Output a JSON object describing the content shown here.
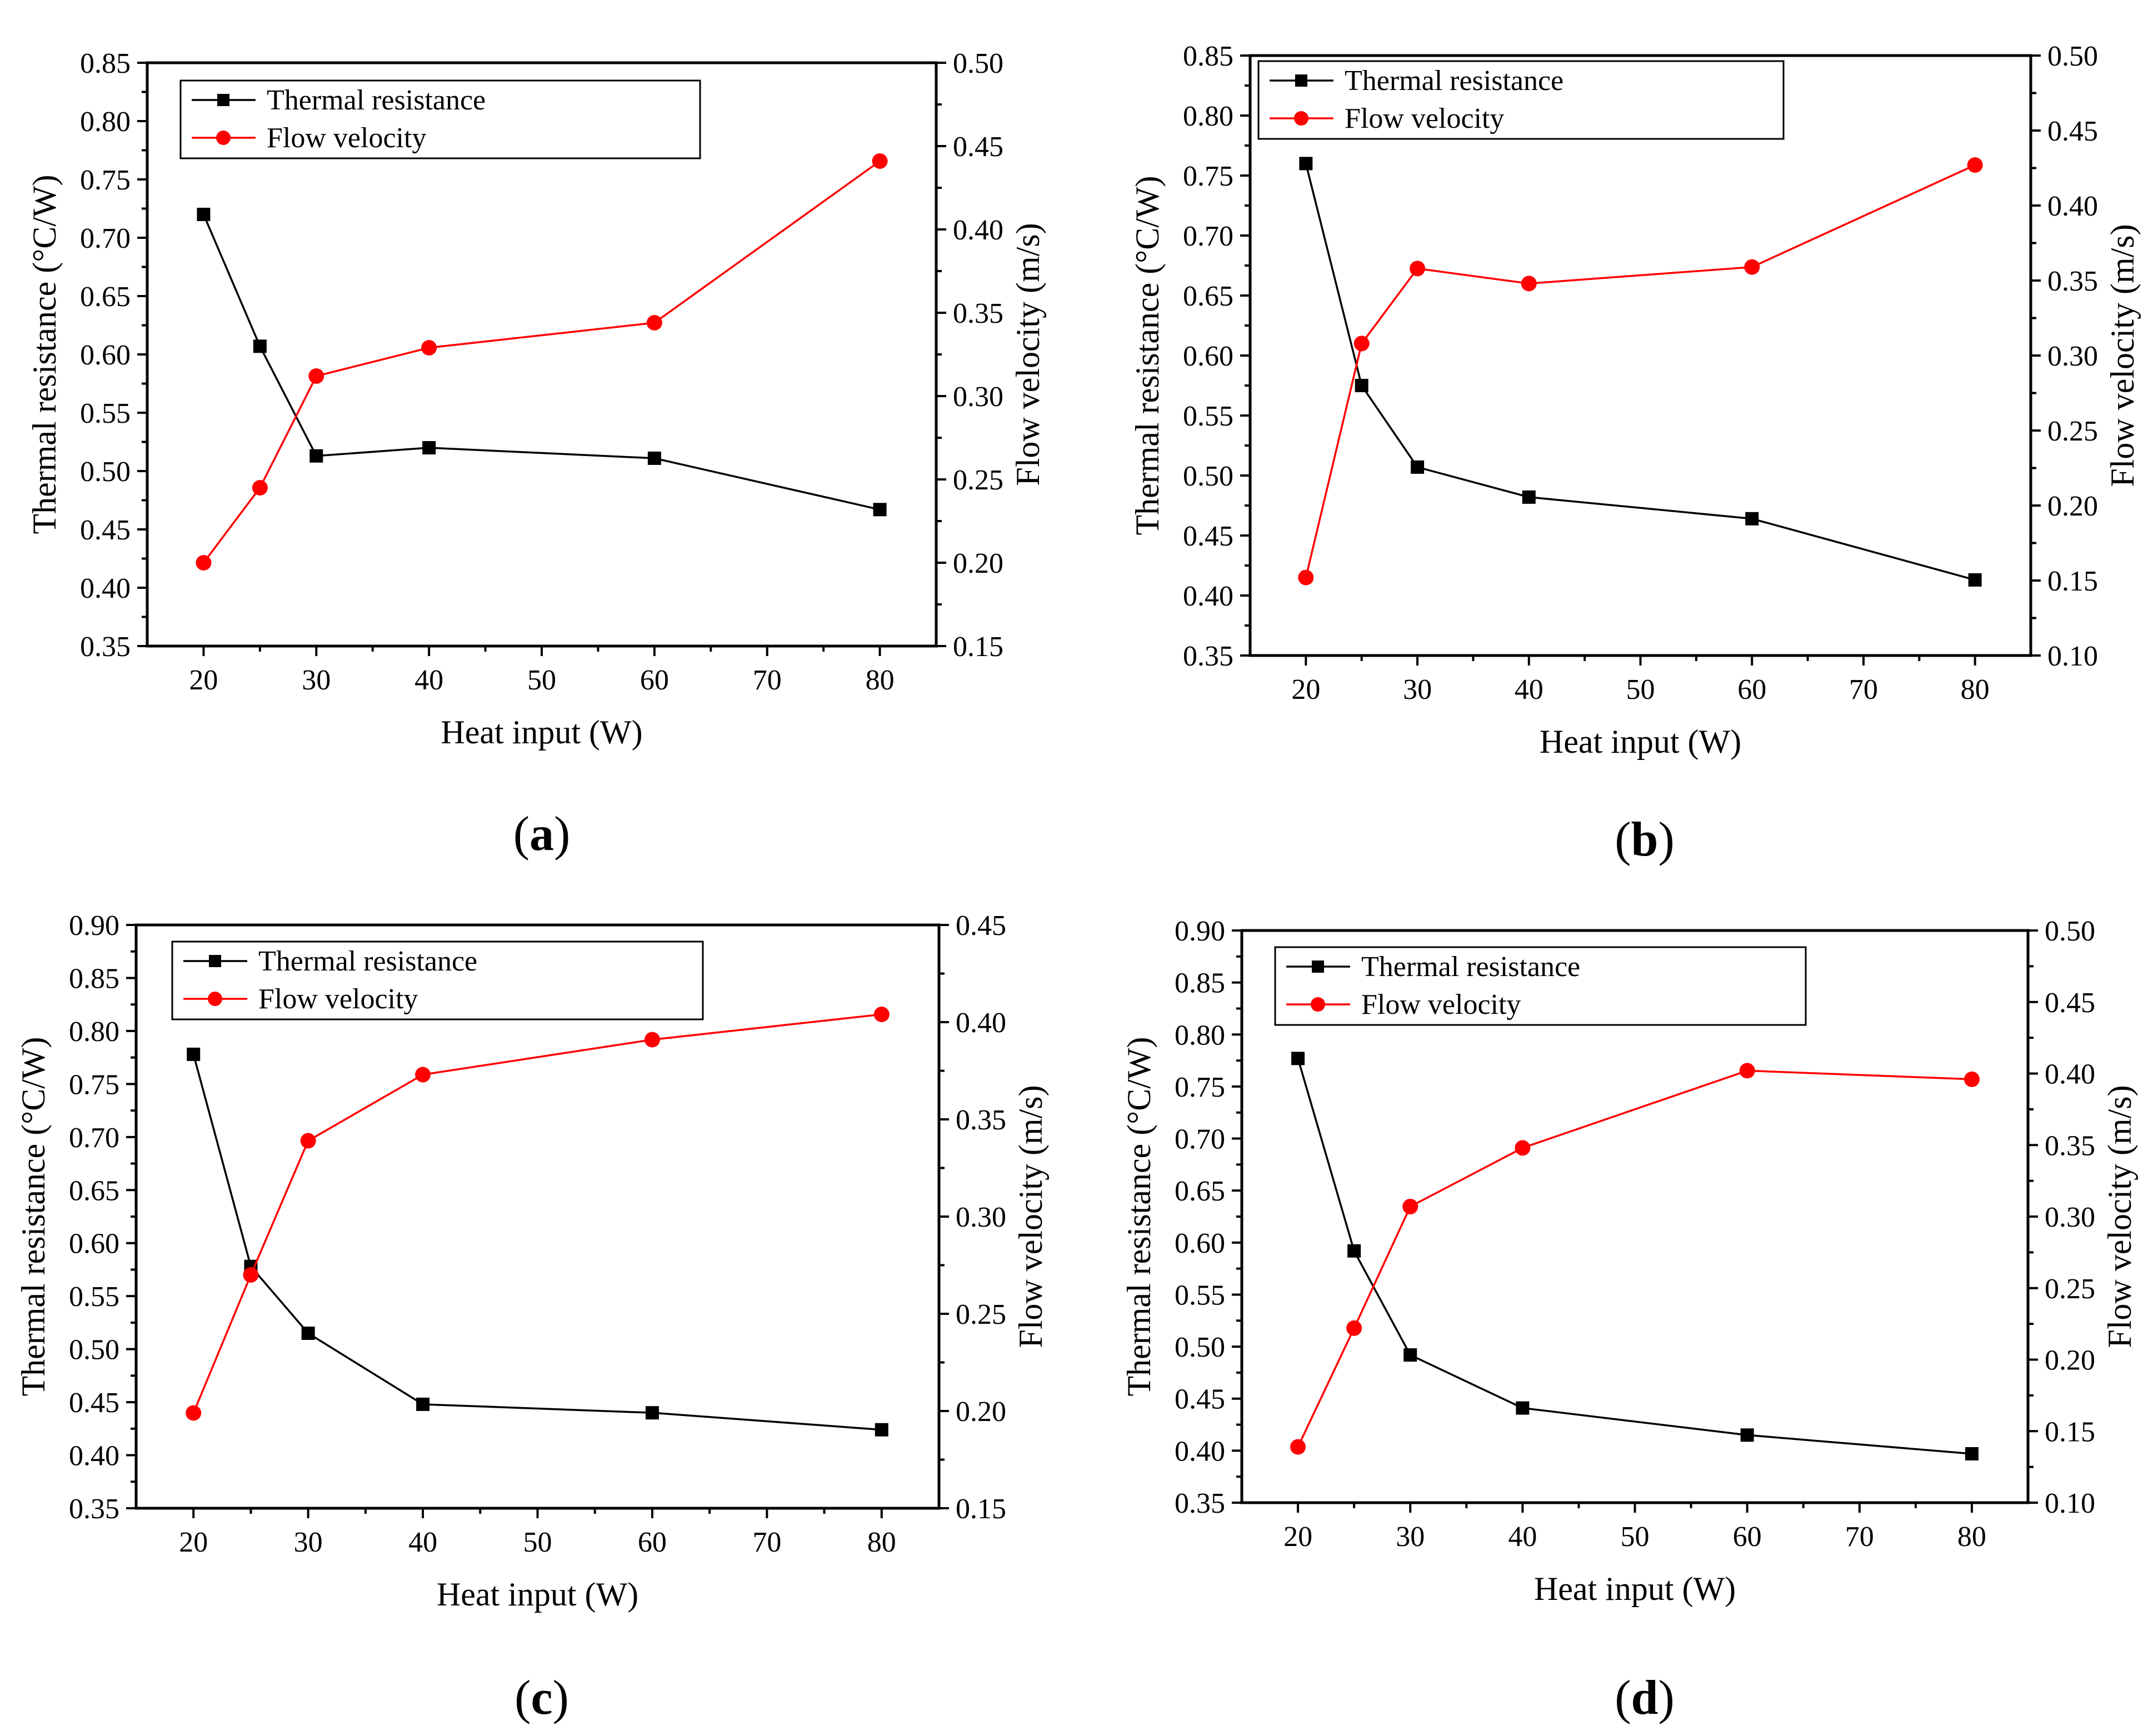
{
  "chart_data": [
    {
      "type": "line",
      "panel_label": "a",
      "title": "",
      "xlabel": "Heat input (W)",
      "ylabel_left": "Thermal resistance (°C/W)",
      "ylabel_right": "Flow velocity (m/s)",
      "xlim": [
        15,
        85
      ],
      "xticks": [
        20,
        30,
        40,
        50,
        60,
        70,
        80
      ],
      "ylim_left": [
        0.35,
        0.85
      ],
      "yticks_left": [
        0.35,
        0.4,
        0.45,
        0.5,
        0.55,
        0.6,
        0.65,
        0.7,
        0.75,
        0.8,
        0.85
      ],
      "ylim_right": [
        0.15,
        0.5
      ],
      "yticks_right": [
        0.15,
        0.2,
        0.25,
        0.3,
        0.35,
        0.4,
        0.45,
        0.5
      ],
      "legend_position": "top-left",
      "series": [
        {
          "name": "Thermal resistance",
          "axis": "left",
          "color": "#000000",
          "marker": "square",
          "x": [
            20,
            25,
            30,
            40,
            60,
            80
          ],
          "values": [
            0.72,
            0.607,
            0.513,
            0.52,
            0.511,
            0.467
          ]
        },
        {
          "name": "Flow velocity",
          "axis": "right",
          "color": "#ff0000",
          "marker": "circle",
          "x": [
            20,
            25,
            30,
            40,
            60,
            80
          ],
          "values": [
            0.2,
            0.245,
            0.312,
            0.329,
            0.344,
            0.441
          ]
        }
      ]
    },
    {
      "type": "line",
      "panel_label": "b",
      "title": "",
      "xlabel": "Heat input (W)",
      "ylabel_left": "Thermal resistance (°C/W)",
      "ylabel_right": "Flow velocity (m/s)",
      "xlim": [
        15,
        85
      ],
      "xticks": [
        20,
        30,
        40,
        50,
        60,
        70,
        80
      ],
      "ylim_left": [
        0.35,
        0.85
      ],
      "yticks_left": [
        0.35,
        0.4,
        0.45,
        0.5,
        0.55,
        0.6,
        0.65,
        0.7,
        0.75,
        0.8,
        0.85
      ],
      "ylim_right": [
        0.1,
        0.5
      ],
      "yticks_right": [
        0.1,
        0.15,
        0.2,
        0.25,
        0.3,
        0.35,
        0.4,
        0.45,
        0.5
      ],
      "legend_position": "top-left",
      "series": [
        {
          "name": "Thermal resistance",
          "axis": "left",
          "color": "#000000",
          "marker": "square",
          "x": [
            20,
            25,
            30,
            40,
            60,
            80
          ],
          "values": [
            0.76,
            0.575,
            0.507,
            0.482,
            0.464,
            0.413
          ]
        },
        {
          "name": "Flow velocity",
          "axis": "right",
          "color": "#ff0000",
          "marker": "circle",
          "x": [
            20,
            25,
            30,
            40,
            60,
            80
          ],
          "values": [
            0.152,
            0.308,
            0.358,
            0.348,
            0.359,
            0.427
          ]
        }
      ]
    },
    {
      "type": "line",
      "panel_label": "c",
      "title": "",
      "xlabel": "Heat input (W)",
      "ylabel_left": "Thermal resistance (°C/W)",
      "ylabel_right": "Flow velocity (m/s)",
      "xlim": [
        15,
        85
      ],
      "xticks": [
        20,
        30,
        40,
        50,
        60,
        70,
        80
      ],
      "ylim_left": [
        0.35,
        0.9
      ],
      "yticks_left": [
        0.35,
        0.4,
        0.45,
        0.5,
        0.55,
        0.6,
        0.65,
        0.7,
        0.75,
        0.8,
        0.85,
        0.9
      ],
      "ylim_right": [
        0.15,
        0.45
      ],
      "yticks_right": [
        0.15,
        0.2,
        0.25,
        0.3,
        0.35,
        0.4,
        0.45
      ],
      "legend_position": "top-left",
      "series": [
        {
          "name": "Thermal resistance",
          "axis": "left",
          "color": "#000000",
          "marker": "square",
          "x": [
            20,
            25,
            30,
            40,
            60,
            80
          ],
          "values": [
            0.778,
            0.578,
            0.515,
            0.448,
            0.44,
            0.424
          ]
        },
        {
          "name": "Flow velocity",
          "axis": "right",
          "color": "#ff0000",
          "marker": "circle",
          "x": [
            20,
            25,
            30,
            40,
            60,
            80
          ],
          "values": [
            0.199,
            0.27,
            0.339,
            0.373,
            0.391,
            0.404
          ]
        }
      ]
    },
    {
      "type": "line",
      "panel_label": "d",
      "title": "",
      "xlabel": "Heat input (W)",
      "ylabel_left": "Thermal resistance (°C/W)",
      "ylabel_right": "Flow velocity (m/s)",
      "xlim": [
        15,
        85
      ],
      "xticks": [
        20,
        30,
        40,
        50,
        60,
        70,
        80
      ],
      "ylim_left": [
        0.35,
        0.9
      ],
      "yticks_left": [
        0.35,
        0.4,
        0.45,
        0.5,
        0.55,
        0.6,
        0.65,
        0.7,
        0.75,
        0.8,
        0.85,
        0.9
      ],
      "ylim_right": [
        0.1,
        0.5
      ],
      "yticks_right": [
        0.1,
        0.15,
        0.2,
        0.25,
        0.3,
        0.35,
        0.4,
        0.45,
        0.5
      ],
      "legend_position": "top-left",
      "series": [
        {
          "name": "Thermal resistance",
          "axis": "left",
          "color": "#000000",
          "marker": "square",
          "x": [
            20,
            25,
            30,
            40,
            60,
            80
          ],
          "values": [
            0.777,
            0.592,
            0.492,
            0.441,
            0.415,
            0.397
          ]
        },
        {
          "name": "Flow velocity",
          "axis": "right",
          "color": "#ff0000",
          "marker": "circle",
          "x": [
            20,
            25,
            30,
            40,
            60,
            80
          ],
          "values": [
            0.139,
            0.222,
            0.307,
            0.348,
            0.402,
            0.396
          ]
        }
      ]
    }
  ]
}
